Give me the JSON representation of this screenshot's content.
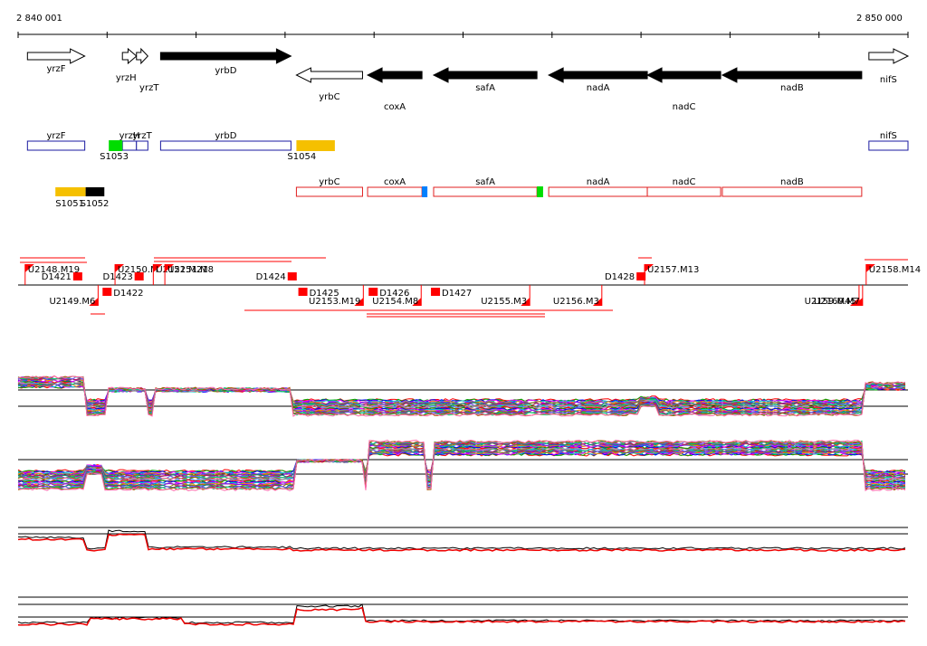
{
  "browser": {
    "range_start_label": "2 840 001",
    "range_end_label": "2 850 000",
    "range": [
      2840001,
      2850000
    ]
  },
  "gene_track": [
    {
      "name": "yrzF",
      "start": 2840106,
      "end": 2840750,
      "strand": "+",
      "essential": false
    },
    {
      "name": "yrzH",
      "start": 2841173,
      "end": 2841331,
      "strand": "+",
      "essential": false
    },
    {
      "name": "yrzT",
      "start": 2841331,
      "end": 2841459,
      "strand": "+",
      "essential": false
    },
    {
      "name": "yrbD",
      "start": 2841602,
      "end": 2843067,
      "strand": "+",
      "essential": true
    },
    {
      "name": "yrbC",
      "start": 2843128,
      "end": 2843871,
      "strand": "-",
      "essential": false
    },
    {
      "name": "coxA",
      "start": 2843928,
      "end": 2844539,
      "strand": "-",
      "essential": true
    },
    {
      "name": "safA",
      "start": 2844670,
      "end": 2845831,
      "strand": "-",
      "essential": true
    },
    {
      "name": "nadA",
      "start": 2845963,
      "end": 2847071,
      "strand": "-",
      "essential": true
    },
    {
      "name": "nadC",
      "start": 2847071,
      "end": 2847895,
      "strand": "-",
      "essential": true
    },
    {
      "name": "nadB",
      "start": 2847914,
      "end": 2849480,
      "strand": "-",
      "essential": true
    },
    {
      "name": "nifS",
      "start": 2849561,
      "end": 2850000,
      "strand": "+",
      "essential": false
    }
  ],
  "gene_row_plus": [
    {
      "name": "yrzF",
      "start": 2840106,
      "end": 2840750
    },
    {
      "name": "yrzH",
      "start": 2841173,
      "end": 2841331
    },
    {
      "name": "yrzT",
      "start": 2841331,
      "end": 2841459
    },
    {
      "name": "yrbD",
      "start": 2841602,
      "end": 2843067
    },
    {
      "name": "nifS",
      "start": 2849561,
      "end": 2850000
    }
  ],
  "gene_row_minus": [
    {
      "name": "yrbC",
      "start": 2843128,
      "end": 2843871
    },
    {
      "name": "coxA",
      "start": 2843928,
      "end": 2844539
    },
    {
      "name": "safA",
      "start": 2844670,
      "end": 2845831
    },
    {
      "name": "nadA",
      "start": 2845963,
      "end": 2847071
    },
    {
      "name": "nadC",
      "start": 2847071,
      "end": 2847895
    },
    {
      "name": "nadB",
      "start": 2847914,
      "end": 2849480
    }
  ],
  "gene_row_plus_labels": [
    "yrzF",
    "yrzH",
    "yrzT",
    "yrbD",
    "nifS"
  ],
  "gene_row_minus_labels": [
    "yrbC",
    "coxA",
    "safA",
    "nadA",
    "nadC",
    "nadB"
  ],
  "segments_plus": [
    {
      "name": "S1053",
      "start": 2841020,
      "end": 2841173,
      "color": "#00dd00"
    },
    {
      "name": "S1054",
      "start": 2843128,
      "end": 2843560,
      "color": "#f5c000"
    }
  ],
  "segments_minus_small": [
    {
      "start": 2844539,
      "end": 2844600,
      "color": "#0080ff"
    },
    {
      "start": 2845831,
      "end": 2845900,
      "color": "#00dd00"
    }
  ],
  "segments_upstream": [
    {
      "name": "S1051",
      "start": 2840420,
      "end": 2840760,
      "color": "#f5c000"
    },
    {
      "name": "S1052",
      "start": 2840760,
      "end": 2840970,
      "color": "#000000"
    }
  ],
  "upstream_labels": [
    "S1051",
    "S1052"
  ],
  "transcripts_plus": [
    {
      "name": "U2148.M19",
      "x": 2840080
    },
    {
      "name": "D1421",
      "x": 2840620
    },
    {
      "name": "U2150.M",
      "x": 2841090
    },
    {
      "name": "D1423",
      "x": 2841310
    },
    {
      "name": "U2152.M21",
      "x": 2841520
    },
    {
      "name": "U2151.M8",
      "x": 2841650
    },
    {
      "name": "D1424",
      "x": 2843030
    },
    {
      "name": "D1428",
      "x": 2846950
    },
    {
      "name": "U2157.M13",
      "x": 2847040
    },
    {
      "name": "U2158.M14",
      "x": 2849530
    }
  ],
  "transcripts_minus": [
    {
      "name": "U2149.M6",
      "x": 2840900
    },
    {
      "name": "D1422",
      "x": 2840950
    },
    {
      "name": "D1425",
      "x": 2843150
    },
    {
      "name": "U2153.M19",
      "x": 2843880
    },
    {
      "name": "D1426",
      "x": 2843940
    },
    {
      "name": "U2154.M8",
      "x": 2844530
    },
    {
      "name": "D1427",
      "x": 2844640
    },
    {
      "name": "U2155.M3",
      "x": 2845750
    },
    {
      "name": "U2156.M3",
      "x": 2846560
    },
    {
      "name": "U2159.M45",
      "x": 2849450
    },
    {
      "name": "U2160.M7",
      "x": 2849490
    }
  ],
  "colors": {
    "gene_outline": "#1a1aa0",
    "minus_outline": "#e02020",
    "transcript": "#ff0000",
    "expr_black": "#000000",
    "expr_red": "#ee0000"
  }
}
